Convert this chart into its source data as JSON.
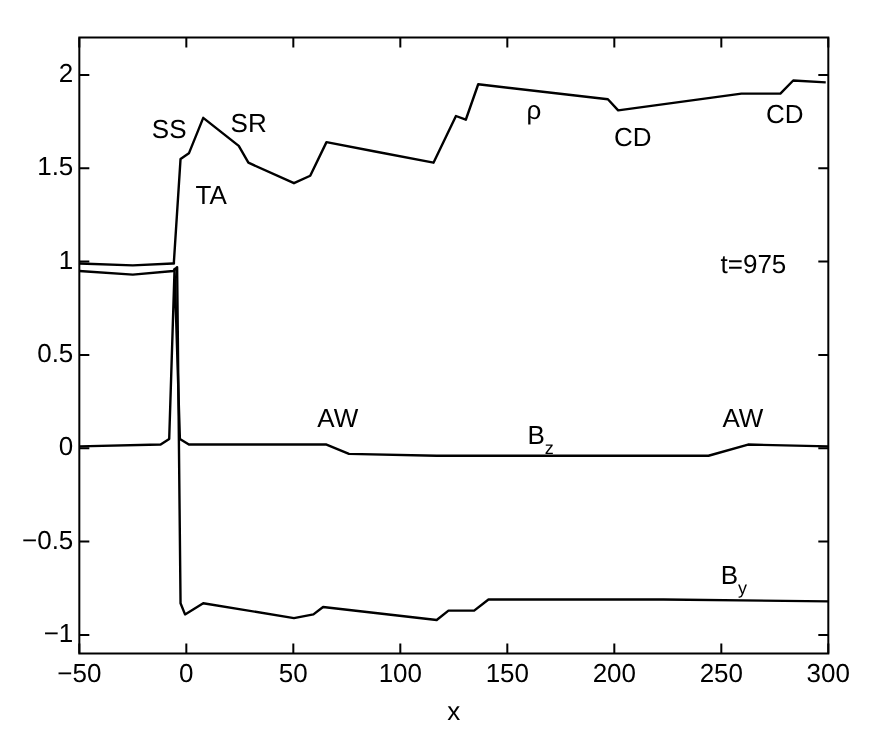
{
  "chart_data": {
    "type": "line",
    "xlabel": "x",
    "xlim": [
      -50,
      300
    ],
    "xticks": [
      -50,
      0,
      50,
      100,
      150,
      200,
      250,
      300
    ],
    "ylim": [
      -1.1,
      2.2
    ],
    "yticks": [
      -1,
      -0.5,
      0,
      0.5,
      1,
      1.5,
      2
    ],
    "grid": false,
    "legend": false,
    "marker": "none",
    "line_style": "solid",
    "series": [
      {
        "name": "ρ",
        "color": "#000000",
        "x": [
          -50,
          -25,
          -6.4,
          -5.8,
          -2.7,
          1.2,
          7.9,
          24.5,
          29,
          50.3,
          57.9,
          65.5,
          88.2,
          115.5,
          126,
          130.6,
          136.4,
          197,
          201.8,
          259.4,
          277.6,
          283.6,
          298.8
        ],
        "values": [
          0.99,
          0.98,
          0.99,
          1.0,
          1.55,
          1.58,
          1.77,
          1.62,
          1.53,
          1.42,
          1.46,
          1.64,
          1.59,
          1.53,
          1.78,
          1.76,
          1.95,
          1.87,
          1.81,
          1.9,
          1.9,
          1.97,
          1.96
        ]
      },
      {
        "name": "B$_{z}$",
        "color": "#000000",
        "x": [
          -50,
          -12,
          -8,
          -5.5,
          -3,
          1.2,
          60.8,
          65.5,
          76,
          117,
          244,
          262.5,
          300
        ],
        "values": [
          0.01,
          0.02,
          0.05,
          0.96,
          0.05,
          0.02,
          0.02,
          0.02,
          -0.03,
          -0.04,
          -0.04,
          0.02,
          0.01
        ]
      },
      {
        "name": "B$_{y}$",
        "color": "#000000",
        "x": [
          -50,
          -25,
          -6,
          -4.3,
          -2.7,
          -0.6,
          7.9,
          50.3,
          59.4,
          63.9,
          117,
          122.5,
          134.5,
          141.2,
          223,
          300
        ],
        "values": [
          0.95,
          0.93,
          0.95,
          0.97,
          -0.83,
          -0.89,
          -0.83,
          -0.91,
          -0.89,
          -0.85,
          -0.92,
          -0.87,
          -0.87,
          -0.81,
          -0.81,
          -0.82
        ]
      }
    ],
    "annotations": [
      "SS",
      "SR",
      "TA",
      "CD",
      "CD",
      "t=975",
      "AW",
      "AW"
    ]
  }
}
